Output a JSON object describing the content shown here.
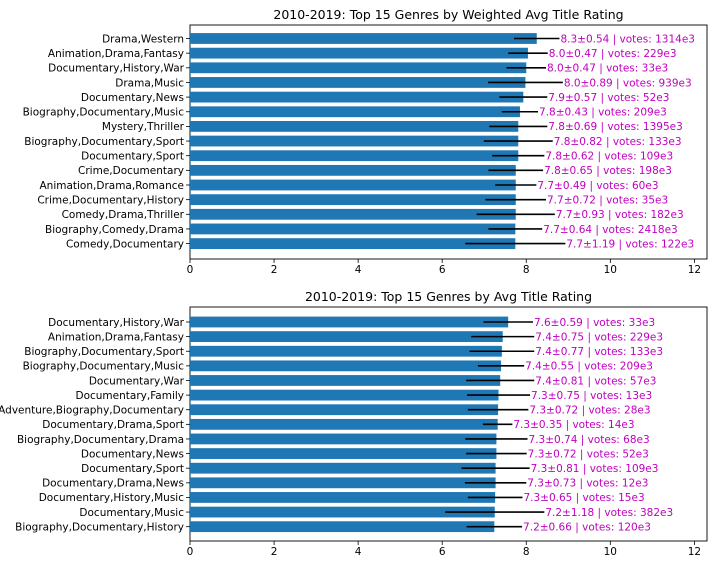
{
  "chart_data": [
    {
      "type": "bar",
      "orientation": "horizontal",
      "title": "2010-2019: Top 15 Genres by Weighted Avg Title Rating",
      "xlim": [
        0,
        12.3
      ],
      "xticks": [
        "0",
        "2",
        "4",
        "6",
        "8",
        "10",
        "12"
      ],
      "grid": false,
      "bar_color": "#1f77b4",
      "error_color": "#000000",
      "label_color": "#bf00bf",
      "categories": [
        "Drama,Western",
        "Animation,Drama,Fantasy",
        "Documentary,History,War",
        "Drama,Music",
        "Documentary,News",
        "Biography,Documentary,Music",
        "Mystery,Thriller",
        "Biography,Documentary,Sport",
        "Documentary,Sport",
        "Crime,Documentary",
        "Animation,Drama,Romance",
        "Crime,Documentary,History",
        "Comedy,Drama,Thriller",
        "Biography,Comedy,Drama",
        "Comedy,Documentary"
      ],
      "values": [
        8.25,
        8.04,
        8.0,
        7.98,
        7.93,
        7.85,
        7.81,
        7.81,
        7.81,
        7.75,
        7.75,
        7.75,
        7.75,
        7.74,
        7.74
      ],
      "errors": [
        0.54,
        0.47,
        0.47,
        0.89,
        0.57,
        0.43,
        0.69,
        0.82,
        0.62,
        0.65,
        0.49,
        0.72,
        0.93,
        0.64,
        1.19
      ],
      "data_labels": [
        "8.3±0.54 | votes: 1314e3",
        "8.0±0.47 | votes: 229e3",
        "8.0±0.47 | votes: 33e3",
        "8.0±0.89 | votes: 939e3",
        "7.9±0.57 | votes: 52e3",
        "7.8±0.43 | votes: 209e3",
        "7.8±0.69 | votes: 1395e3",
        "7.8±0.82 | votes: 133e3",
        "7.8±0.62 | votes: 109e3",
        "7.8±0.65 | votes: 198e3",
        "7.7±0.49 | votes: 60e3",
        "7.7±0.72 | votes: 35e3",
        "7.7±0.93 | votes: 182e3",
        "7.7±0.64 | votes: 2418e3",
        "7.7±1.19 | votes: 122e3"
      ]
    },
    {
      "type": "bar",
      "orientation": "horizontal",
      "title": "2010-2019: Top 15 Genres by Avg Title Rating",
      "xlim": [
        0,
        12.3
      ],
      "xticks": [
        "0",
        "2",
        "4",
        "6",
        "8",
        "10",
        "12"
      ],
      "grid": false,
      "bar_color": "#1f77b4",
      "error_color": "#000000",
      "label_color": "#bf00bf",
      "categories": [
        "Documentary,History,War",
        "Animation,Drama,Fantasy",
        "Biography,Documentary,Sport",
        "Biography,Documentary,Music",
        "Documentary,War",
        "Documentary,Family",
        "Adventure,Biography,Documentary",
        "Documentary,Drama,Sport",
        "Biography,Documentary,Drama",
        "Documentary,News",
        "Documentary,Sport",
        "Documentary,Drama,News",
        "Documentary,History,Music",
        "Documentary,Music",
        "Biography,Documentary,History"
      ],
      "values": [
        7.57,
        7.44,
        7.42,
        7.4,
        7.38,
        7.34,
        7.33,
        7.32,
        7.29,
        7.29,
        7.27,
        7.27,
        7.26,
        7.25,
        7.24
      ],
      "errors": [
        0.59,
        0.75,
        0.77,
        0.55,
        0.81,
        0.75,
        0.72,
        0.35,
        0.74,
        0.72,
        0.81,
        0.73,
        0.65,
        1.18,
        0.66
      ],
      "data_labels": [
        "7.6±0.59 | votes: 33e3",
        "7.4±0.75 | votes: 229e3",
        "7.4±0.77 | votes: 133e3",
        "7.4±0.55 | votes: 209e3",
        "7.4±0.81 | votes: 57e3",
        "7.3±0.75 | votes: 13e3",
        "7.3±0.72 | votes: 28e3",
        "7.3±0.35 | votes: 14e3",
        "7.3±0.74 | votes: 68e3",
        "7.3±0.72 | votes: 52e3",
        "7.3±0.81 | votes: 109e3",
        "7.3±0.73 | votes: 12e3",
        "7.3±0.65 | votes: 15e3",
        "7.2±1.18 | votes: 382e3",
        "7.2±0.66 | votes: 120e3"
      ]
    }
  ]
}
